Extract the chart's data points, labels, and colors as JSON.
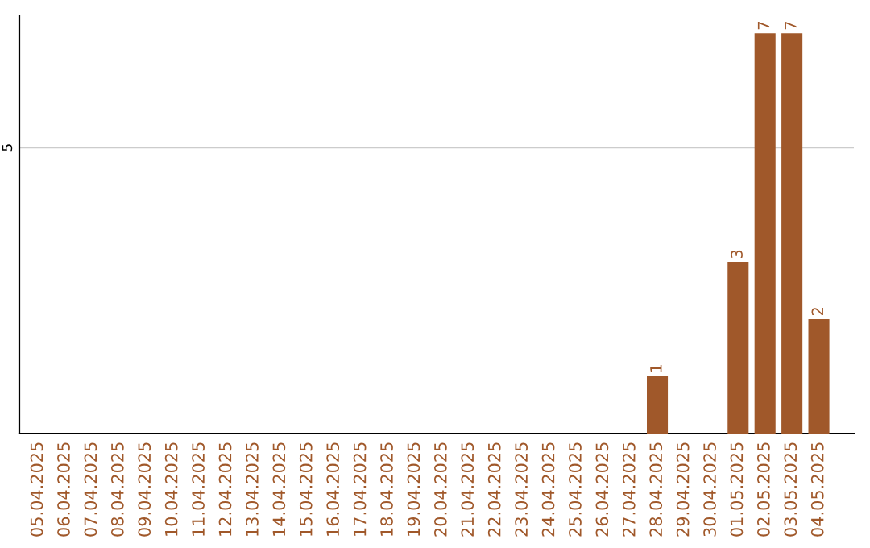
{
  "chart_data": {
    "type": "bar",
    "categories": [
      "05.04.2025",
      "06.04.2025",
      "07.04.2025",
      "08.04.2025",
      "09.04.2025",
      "10.04.2025",
      "11.04.2025",
      "12.04.2025",
      "13.04.2025",
      "14.04.2025",
      "15.04.2025",
      "16.04.2025",
      "17.04.2025",
      "18.04.2025",
      "19.04.2025",
      "20.04.2025",
      "21.04.2025",
      "22.04.2025",
      "23.04.2025",
      "24.04.2025",
      "25.04.2025",
      "26.04.2025",
      "27.04.2025",
      "28.04.2025",
      "29.04.2025",
      "30.04.2025",
      "01.05.2025",
      "02.05.2025",
      "03.05.2025",
      "04.05.2025"
    ],
    "values": [
      null,
      null,
      null,
      null,
      null,
      null,
      null,
      null,
      null,
      null,
      null,
      null,
      null,
      null,
      null,
      null,
      null,
      null,
      null,
      null,
      null,
      null,
      null,
      1,
      null,
      null,
      3,
      7,
      7,
      2
    ],
    "value_labels": [
      null,
      null,
      null,
      null,
      null,
      null,
      null,
      null,
      null,
      null,
      null,
      null,
      null,
      null,
      null,
      null,
      null,
      null,
      null,
      null,
      null,
      null,
      null,
      "1",
      null,
      null,
      "3",
      "7",
      "7",
      "2"
    ],
    "color": "#a0582a",
    "ylim": [
      0,
      7.3
    ],
    "yticks": [
      5
    ],
    "grid": "y"
  }
}
